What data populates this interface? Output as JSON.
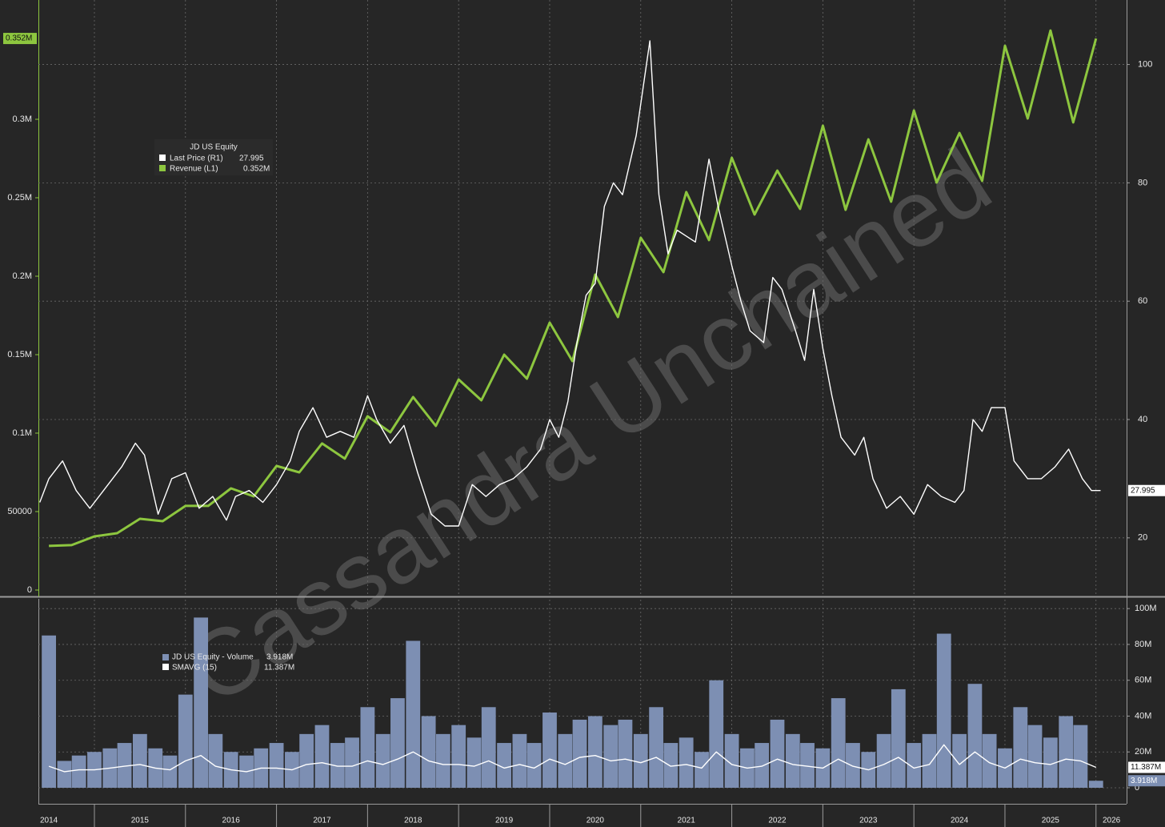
{
  "watermark": "Cassandra Unchained",
  "chart_data": [
    {
      "type": "line",
      "legend": {
        "title": "JD US Equity"
      },
      "series": [
        {
          "name": "Last Price  (R1)",
          "color": "#ffffff",
          "axis": "y2",
          "tag": "27.995",
          "legend_value": "27.995",
          "x": [
            2014.4,
            2014.5,
            2014.65,
            2014.8,
            2014.95,
            2015.1,
            2015.3,
            2015.45,
            2015.55,
            2015.7,
            2015.85,
            2016.0,
            2016.15,
            2016.3,
            2016.45,
            2016.55,
            2016.7,
            2016.85,
            2017.0,
            2017.15,
            2017.25,
            2017.4,
            2017.55,
            2017.7,
            2017.85,
            2018.0,
            2018.1,
            2018.25,
            2018.4,
            2018.55,
            2018.7,
            2018.85,
            2019.0,
            2019.15,
            2019.3,
            2019.45,
            2019.6,
            2019.75,
            2019.9,
            2020.0,
            2020.1,
            2020.2,
            2020.3,
            2020.4,
            2020.5,
            2020.6,
            2020.7,
            2020.8,
            2020.95,
            2021.1,
            2021.2,
            2021.3,
            2021.4,
            2021.5,
            2021.6,
            2021.75,
            2021.85,
            2022.0,
            2022.1,
            2022.2,
            2022.35,
            2022.45,
            2022.55,
            2022.7,
            2022.8,
            2022.9,
            2023.0,
            2023.1,
            2023.2,
            2023.35,
            2023.45,
            2023.55,
            2023.7,
            2023.85,
            2024.0,
            2024.15,
            2024.3,
            2024.45,
            2024.55,
            2024.65,
            2024.75,
            2024.85,
            2025.0,
            2025.1,
            2025.25,
            2025.4,
            2025.55,
            2025.7,
            2025.85,
            2025.95,
            2026.05
          ],
          "values": [
            26,
            30,
            33,
            28,
            25,
            28,
            32,
            36,
            34,
            24,
            30,
            31,
            25,
            27,
            23,
            27,
            28,
            26,
            29,
            33,
            38,
            42,
            37,
            38,
            37,
            44,
            40,
            36,
            39,
            31,
            24,
            22,
            22,
            29,
            27,
            29,
            30,
            32,
            35,
            40,
            37,
            43,
            53,
            61,
            63,
            76,
            80,
            78,
            88,
            104,
            78,
            68,
            72,
            71,
            70,
            84,
            76,
            66,
            60,
            55,
            53,
            64,
            62,
            55,
            50,
            62,
            52,
            44,
            37,
            34,
            37,
            30,
            25,
            27,
            24,
            29,
            27,
            26,
            28,
            40,
            38,
            42,
            42,
            33,
            30,
            30,
            32,
            35,
            30,
            28,
            27.995
          ]
        },
        {
          "name": "Revenue  (L1)",
          "color": "#8dc63f",
          "axis": "y",
          "tag": "0.352M",
          "legend_value": "0.352M",
          "x": [
            2014.5,
            2014.75,
            2015.0,
            2015.25,
            2015.5,
            2015.75,
            2016.0,
            2016.25,
            2016.5,
            2016.75,
            2017.0,
            2017.25,
            2017.5,
            2017.75,
            2018.0,
            2018.25,
            2018.5,
            2018.75,
            2019.0,
            2019.25,
            2019.5,
            2019.75,
            2020.0,
            2020.25,
            2020.5,
            2020.75,
            2021.0,
            2021.25,
            2021.5,
            2021.75,
            2022.0,
            2022.25,
            2022.5,
            2022.75,
            2023.0,
            2023.25,
            2023.5,
            2023.75,
            2024.0,
            2024.25,
            2024.5,
            2024.75,
            2025.0,
            2025.25,
            2025.5,
            2025.75,
            2026.0
          ],
          "values": [
            28100,
            28600,
            34200,
            36200,
            45400,
            43900,
            53600,
            53600,
            64800,
            59700,
            79100,
            75000,
            93400,
            83700,
            110700,
            100500,
            123000,
            104600,
            134200,
            120900,
            150000,
            134700,
            170400,
            145900,
            201000,
            174000,
            224500,
            202600,
            253600,
            223000,
            275500,
            239300,
            267300,
            242900,
            295900,
            242300,
            287200,
            247500,
            305600,
            259700,
            291300,
            260700,
            346900,
            300500,
            356600,
            298000,
            351500
          ]
        }
      ],
      "xlim": [
        2014.385,
        2026.336
      ],
      "xgrid": [
        2015,
        2016,
        2017,
        2018,
        2019,
        2020,
        2021,
        2022,
        2023,
        2024,
        2025,
        2026
      ],
      "ylim": [
        -4082,
        376020
      ],
      "yticks": [
        0,
        50000,
        {
          "value": 100000,
          "label": "0.1M"
        },
        {
          "value": 150000,
          "label": "0.15M"
        },
        {
          "value": 200000,
          "label": "0.2M"
        },
        {
          "value": 250000,
          "label": "0.25M"
        },
        {
          "value": 300000,
          "label": "0.3M"
        }
      ],
      "y2lim": [
        10.1,
        110.9
      ],
      "y2ticks": [
        20,
        40,
        60,
        80,
        100
      ],
      "grid": true
    },
    {
      "type": "bar",
      "series": [
        {
          "name": "JD US Equity - Volume",
          "type": "bar",
          "color": "#7d8fb3",
          "tag": "3.918M",
          "legend_value": "3.918M",
          "x": [
            2014.5,
            2014.67,
            2014.83,
            2015.0,
            2015.17,
            2015.33,
            2015.5,
            2015.67,
            2015.83,
            2016.0,
            2016.17,
            2016.33,
            2016.5,
            2016.67,
            2016.83,
            2017.0,
            2017.17,
            2017.33,
            2017.5,
            2017.67,
            2017.83,
            2018.0,
            2018.17,
            2018.33,
            2018.5,
            2018.67,
            2018.83,
            2019.0,
            2019.17,
            2019.33,
            2019.5,
            2019.67,
            2019.83,
            2020.0,
            2020.17,
            2020.33,
            2020.5,
            2020.67,
            2020.83,
            2021.0,
            2021.17,
            2021.33,
            2021.5,
            2021.67,
            2021.83,
            2022.0,
            2022.17,
            2022.33,
            2022.5,
            2022.67,
            2022.83,
            2023.0,
            2023.17,
            2023.33,
            2023.5,
            2023.67,
            2023.83,
            2024.0,
            2024.17,
            2024.33,
            2024.5,
            2024.67,
            2024.83,
            2025.0,
            2025.17,
            2025.33,
            2025.5,
            2025.67,
            2025.83,
            2026.0
          ],
          "values": [
            85000000,
            15000000,
            18000000,
            20000000,
            22000000,
            25000000,
            30000000,
            22000000,
            18000000,
            52000000,
            95000000,
            30000000,
            20000000,
            18000000,
            22000000,
            25000000,
            20000000,
            30000000,
            35000000,
            25000000,
            28000000,
            45000000,
            30000000,
            50000000,
            82000000,
            40000000,
            30000000,
            35000000,
            28000000,
            45000000,
            25000000,
            30000000,
            25000000,
            42000000,
            30000000,
            38000000,
            40000000,
            35000000,
            38000000,
            30000000,
            45000000,
            25000000,
            28000000,
            20000000,
            60000000,
            30000000,
            22000000,
            25000000,
            38000000,
            30000000,
            25000000,
            22000000,
            50000000,
            25000000,
            20000000,
            30000000,
            55000000,
            25000000,
            30000000,
            86000000,
            30000000,
            58000000,
            30000000,
            22000000,
            45000000,
            35000000,
            28000000,
            40000000,
            35000000,
            3918000
          ]
        },
        {
          "name": "SMAVG (15)",
          "type": "line",
          "color": "#ffffff",
          "tag": "11.387M",
          "legend_value": "11.387M",
          "x": [
            2014.5,
            2014.67,
            2014.83,
            2015.0,
            2015.17,
            2015.33,
            2015.5,
            2015.67,
            2015.83,
            2016.0,
            2016.17,
            2016.33,
            2016.5,
            2016.67,
            2016.83,
            2017.0,
            2017.17,
            2017.33,
            2017.5,
            2017.67,
            2017.83,
            2018.0,
            2018.17,
            2018.33,
            2018.5,
            2018.67,
            2018.83,
            2019.0,
            2019.17,
            2019.33,
            2019.5,
            2019.67,
            2019.83,
            2020.0,
            2020.17,
            2020.33,
            2020.5,
            2020.67,
            2020.83,
            2021.0,
            2021.17,
            2021.33,
            2021.5,
            2021.67,
            2021.83,
            2022.0,
            2022.17,
            2022.33,
            2022.5,
            2022.67,
            2022.83,
            2023.0,
            2023.17,
            2023.33,
            2023.5,
            2023.67,
            2023.83,
            2024.0,
            2024.17,
            2024.33,
            2024.5,
            2024.67,
            2024.83,
            2025.0,
            2025.17,
            2025.33,
            2025.5,
            2025.67,
            2025.83,
            2026.0
          ],
          "values": [
            12000000,
            9000000,
            10000000,
            10000000,
            11000000,
            12000000,
            13000000,
            11000000,
            10000000,
            15000000,
            18000000,
            12000000,
            10000000,
            9000000,
            11000000,
            11000000,
            10000000,
            13000000,
            14000000,
            12000000,
            12000000,
            15000000,
            13000000,
            16000000,
            20000000,
            15000000,
            13000000,
            13000000,
            12000000,
            15000000,
            11000000,
            13000000,
            11000000,
            16000000,
            13000000,
            17000000,
            18000000,
            15000000,
            16000000,
            14000000,
            17000000,
            12000000,
            13000000,
            11000000,
            20000000,
            13000000,
            11000000,
            12000000,
            16000000,
            13000000,
            12000000,
            11000000,
            16000000,
            12000000,
            10000000,
            13000000,
            17000000,
            11000000,
            13000000,
            24000000,
            13000000,
            20000000,
            14000000,
            11000000,
            16000000,
            14000000,
            13000000,
            16000000,
            15000000,
            11387000
          ]
        }
      ],
      "xlim": [
        2014.385,
        2026.336
      ],
      "xgrid": [
        2015,
        2016,
        2017,
        2018,
        2019,
        2020,
        2021,
        2022,
        2023,
        2024,
        2025,
        2026
      ],
      "xticks": [
        {
          "value": 2014.5,
          "label": "2014"
        },
        {
          "value": 2015.5,
          "label": "2015"
        },
        {
          "value": 2016.5,
          "label": "2016"
        },
        {
          "value": 2017.5,
          "label": "2017"
        },
        {
          "value": 2018.5,
          "label": "2018"
        },
        {
          "value": 2019.5,
          "label": "2019"
        },
        {
          "value": 2020.5,
          "label": "2020"
        },
        {
          "value": 2021.5,
          "label": "2021"
        },
        {
          "value": 2022.5,
          "label": "2022"
        },
        {
          "value": 2023.5,
          "label": "2023"
        },
        {
          "value": 2024.5,
          "label": "2024"
        },
        {
          "value": 2025.5,
          "label": "2025"
        },
        {
          "value": 2026.17,
          "label": "2026"
        }
      ],
      "ylim": [
        0,
        105000000
      ],
      "yticks": [
        {
          "value": 0,
          "label": "0"
        },
        {
          "value": 20000000,
          "label": "20M"
        },
        {
          "value": 40000000,
          "label": "40M"
        },
        {
          "value": 60000000,
          "label": "60M"
        },
        {
          "value": 80000000,
          "label": "80M"
        },
        {
          "value": 100000000,
          "label": "100M"
        }
      ],
      "grid": true
    }
  ]
}
